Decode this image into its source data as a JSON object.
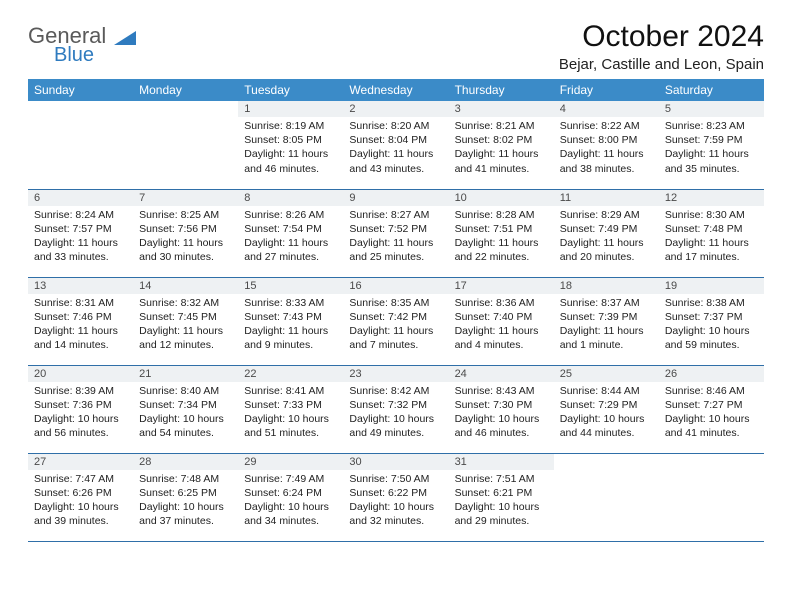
{
  "logo": {
    "general": "General",
    "blue": "Blue"
  },
  "title": "October 2024",
  "location": "Bejar, Castille and Leon, Spain",
  "colors": {
    "header_bg": "#3b8bc8",
    "header_text": "#ffffff",
    "daynum_bg": "#eef1f3",
    "row_divider": "#2f6fa8",
    "logo_gray": "#5a5a5a",
    "logo_blue": "#2f7bbf"
  },
  "dow": [
    "Sunday",
    "Monday",
    "Tuesday",
    "Wednesday",
    "Thursday",
    "Friday",
    "Saturday"
  ],
  "weeks": [
    [
      null,
      null,
      {
        "n": "1",
        "sr": "Sunrise: 8:19 AM",
        "ss": "Sunset: 8:05 PM",
        "dl": "Daylight: 11 hours and 46 minutes."
      },
      {
        "n": "2",
        "sr": "Sunrise: 8:20 AM",
        "ss": "Sunset: 8:04 PM",
        "dl": "Daylight: 11 hours and 43 minutes."
      },
      {
        "n": "3",
        "sr": "Sunrise: 8:21 AM",
        "ss": "Sunset: 8:02 PM",
        "dl": "Daylight: 11 hours and 41 minutes."
      },
      {
        "n": "4",
        "sr": "Sunrise: 8:22 AM",
        "ss": "Sunset: 8:00 PM",
        "dl": "Daylight: 11 hours and 38 minutes."
      },
      {
        "n": "5",
        "sr": "Sunrise: 8:23 AM",
        "ss": "Sunset: 7:59 PM",
        "dl": "Daylight: 11 hours and 35 minutes."
      }
    ],
    [
      {
        "n": "6",
        "sr": "Sunrise: 8:24 AM",
        "ss": "Sunset: 7:57 PM",
        "dl": "Daylight: 11 hours and 33 minutes."
      },
      {
        "n": "7",
        "sr": "Sunrise: 8:25 AM",
        "ss": "Sunset: 7:56 PM",
        "dl": "Daylight: 11 hours and 30 minutes."
      },
      {
        "n": "8",
        "sr": "Sunrise: 8:26 AM",
        "ss": "Sunset: 7:54 PM",
        "dl": "Daylight: 11 hours and 27 minutes."
      },
      {
        "n": "9",
        "sr": "Sunrise: 8:27 AM",
        "ss": "Sunset: 7:52 PM",
        "dl": "Daylight: 11 hours and 25 minutes."
      },
      {
        "n": "10",
        "sr": "Sunrise: 8:28 AM",
        "ss": "Sunset: 7:51 PM",
        "dl": "Daylight: 11 hours and 22 minutes."
      },
      {
        "n": "11",
        "sr": "Sunrise: 8:29 AM",
        "ss": "Sunset: 7:49 PM",
        "dl": "Daylight: 11 hours and 20 minutes."
      },
      {
        "n": "12",
        "sr": "Sunrise: 8:30 AM",
        "ss": "Sunset: 7:48 PM",
        "dl": "Daylight: 11 hours and 17 minutes."
      }
    ],
    [
      {
        "n": "13",
        "sr": "Sunrise: 8:31 AM",
        "ss": "Sunset: 7:46 PM",
        "dl": "Daylight: 11 hours and 14 minutes."
      },
      {
        "n": "14",
        "sr": "Sunrise: 8:32 AM",
        "ss": "Sunset: 7:45 PM",
        "dl": "Daylight: 11 hours and 12 minutes."
      },
      {
        "n": "15",
        "sr": "Sunrise: 8:33 AM",
        "ss": "Sunset: 7:43 PM",
        "dl": "Daylight: 11 hours and 9 minutes."
      },
      {
        "n": "16",
        "sr": "Sunrise: 8:35 AM",
        "ss": "Sunset: 7:42 PM",
        "dl": "Daylight: 11 hours and 7 minutes."
      },
      {
        "n": "17",
        "sr": "Sunrise: 8:36 AM",
        "ss": "Sunset: 7:40 PM",
        "dl": "Daylight: 11 hours and 4 minutes."
      },
      {
        "n": "18",
        "sr": "Sunrise: 8:37 AM",
        "ss": "Sunset: 7:39 PM",
        "dl": "Daylight: 11 hours and 1 minute."
      },
      {
        "n": "19",
        "sr": "Sunrise: 8:38 AM",
        "ss": "Sunset: 7:37 PM",
        "dl": "Daylight: 10 hours and 59 minutes."
      }
    ],
    [
      {
        "n": "20",
        "sr": "Sunrise: 8:39 AM",
        "ss": "Sunset: 7:36 PM",
        "dl": "Daylight: 10 hours and 56 minutes."
      },
      {
        "n": "21",
        "sr": "Sunrise: 8:40 AM",
        "ss": "Sunset: 7:34 PM",
        "dl": "Daylight: 10 hours and 54 minutes."
      },
      {
        "n": "22",
        "sr": "Sunrise: 8:41 AM",
        "ss": "Sunset: 7:33 PM",
        "dl": "Daylight: 10 hours and 51 minutes."
      },
      {
        "n": "23",
        "sr": "Sunrise: 8:42 AM",
        "ss": "Sunset: 7:32 PM",
        "dl": "Daylight: 10 hours and 49 minutes."
      },
      {
        "n": "24",
        "sr": "Sunrise: 8:43 AM",
        "ss": "Sunset: 7:30 PM",
        "dl": "Daylight: 10 hours and 46 minutes."
      },
      {
        "n": "25",
        "sr": "Sunrise: 8:44 AM",
        "ss": "Sunset: 7:29 PM",
        "dl": "Daylight: 10 hours and 44 minutes."
      },
      {
        "n": "26",
        "sr": "Sunrise: 8:46 AM",
        "ss": "Sunset: 7:27 PM",
        "dl": "Daylight: 10 hours and 41 minutes."
      }
    ],
    [
      {
        "n": "27",
        "sr": "Sunrise: 7:47 AM",
        "ss": "Sunset: 6:26 PM",
        "dl": "Daylight: 10 hours and 39 minutes."
      },
      {
        "n": "28",
        "sr": "Sunrise: 7:48 AM",
        "ss": "Sunset: 6:25 PM",
        "dl": "Daylight: 10 hours and 37 minutes."
      },
      {
        "n": "29",
        "sr": "Sunrise: 7:49 AM",
        "ss": "Sunset: 6:24 PM",
        "dl": "Daylight: 10 hours and 34 minutes."
      },
      {
        "n": "30",
        "sr": "Sunrise: 7:50 AM",
        "ss": "Sunset: 6:22 PM",
        "dl": "Daylight: 10 hours and 32 minutes."
      },
      {
        "n": "31",
        "sr": "Sunrise: 7:51 AM",
        "ss": "Sunset: 6:21 PM",
        "dl": "Daylight: 10 hours and 29 minutes."
      },
      null,
      null
    ]
  ]
}
